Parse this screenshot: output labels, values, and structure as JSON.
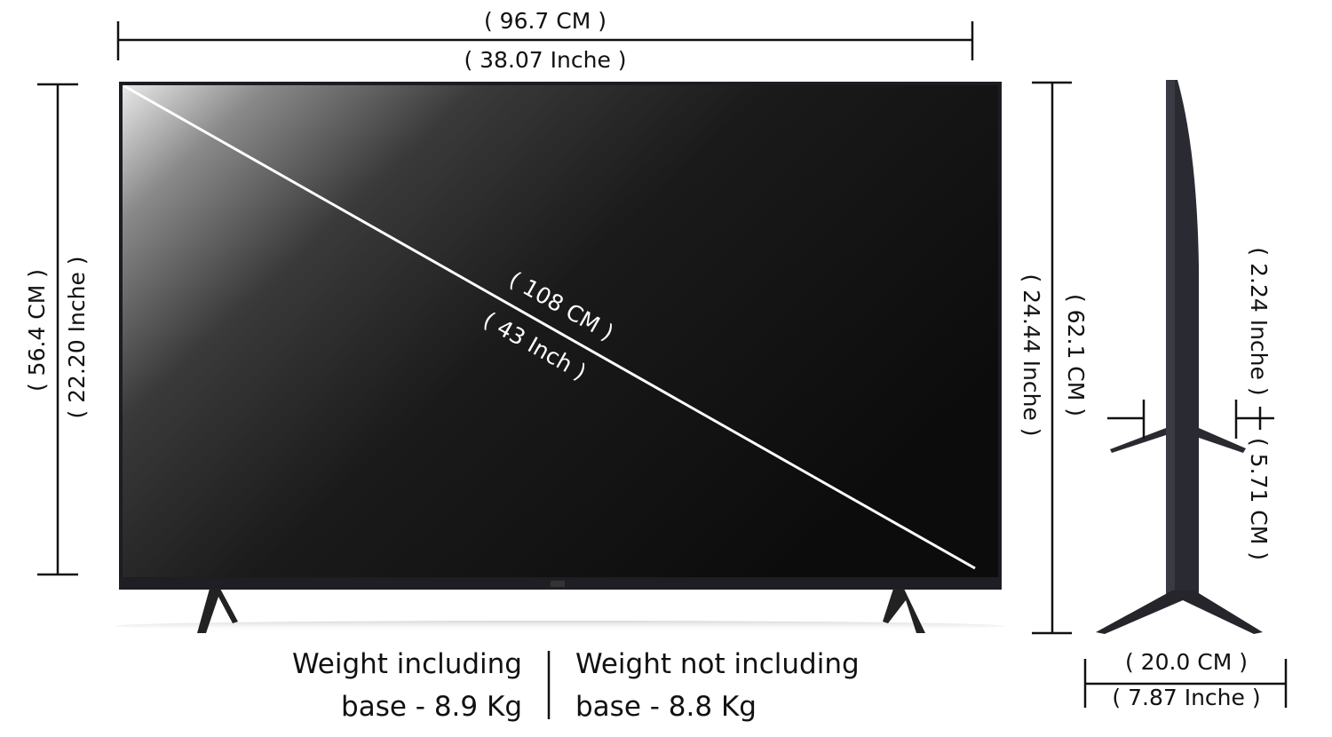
{
  "width": {
    "cm": "( 96.7 CM )",
    "inch": "( 38.07 Inche )"
  },
  "height_screen": {
    "cm": "( 56.4 CM )",
    "inch": "( 22.20 Inche )"
  },
  "diagonal": {
    "cm": "( 108 CM )",
    "inch": "( 43 Inch )"
  },
  "height_with_stand": {
    "inch": "( 24.44 Inche )",
    "cm": "( 62.1 CM )"
  },
  "depth_panel": {
    "inch": "( 2.24 Inche )",
    "cm": "( 5.71 CM )"
  },
  "depth_stand": {
    "cm": "( 20.0 CM )",
    "inch": "( 7.87 Inche )"
  },
  "weight": {
    "with_base_line1": "Weight including",
    "with_base_line2": "base - 8.9 Kg",
    "without_base_line1": "Weight not including",
    "without_base_line2": "base - 8.8 Kg"
  },
  "colors": {
    "tv_body": "#1c1c22",
    "diagonal_line": "#ffffff"
  }
}
